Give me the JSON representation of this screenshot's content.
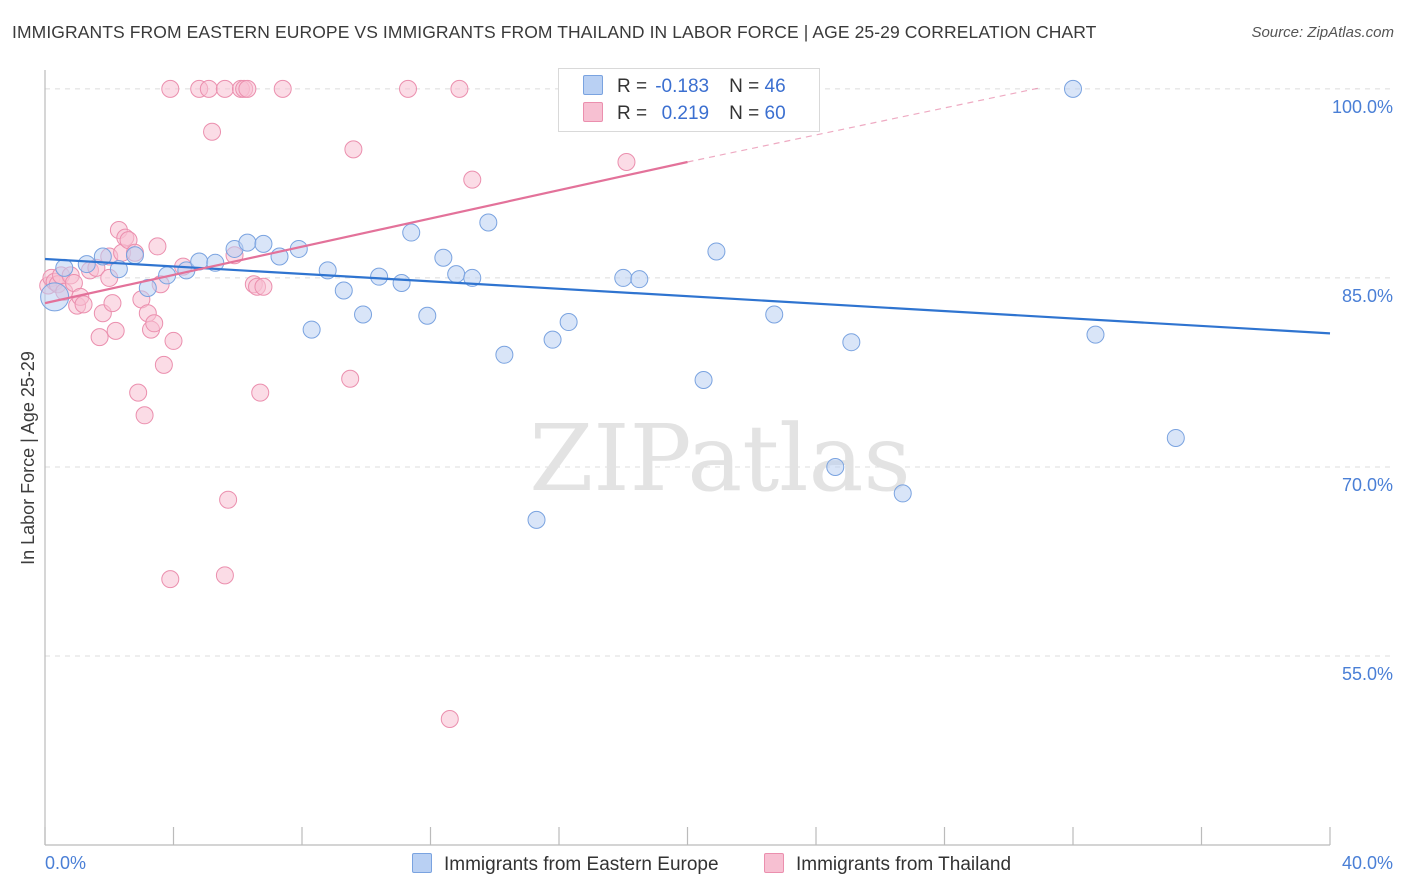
{
  "title": "IMMIGRANTS FROM EASTERN EUROPE VS IMMIGRANTS FROM THAILAND IN LABOR FORCE | AGE 25-29 CORRELATION CHART",
  "source": "Source: ZipAtlas.com",
  "watermark": "ZIPatlas",
  "colors": {
    "blue_fill": "#b9d0f3",
    "blue_stroke": "#7aa3e0",
    "blue_line": "#2f74d0",
    "pink_fill": "#f7c0d2",
    "pink_stroke": "#eb8fae",
    "pink_line": "#e3729a",
    "grid": "#dcdcdc",
    "tick_text": "#4a7fd6"
  },
  "legend_top": [
    {
      "r_label": "R =",
      "r_value": "-0.183",
      "n_label": "N =",
      "n_value": "46"
    },
    {
      "r_label": "R =",
      "r_value": "0.219",
      "n_label": "N =",
      "n_value": "60"
    }
  ],
  "chart_data": {
    "type": "scatter",
    "ylabel": "In Labor Force | Age 25-29",
    "xlim": [
      0,
      40
    ],
    "ylim": [
      40,
      101.5
    ],
    "x_tick_labels": [
      "0.0%",
      "40.0%"
    ],
    "y_ticks": [
      100,
      85,
      70,
      55
    ],
    "y_tick_labels": [
      "100.0%",
      "85.0%",
      "70.0%",
      "55.0%"
    ],
    "grid": "horizontal dashed",
    "legend_position": "bottom",
    "series": [
      {
        "name": "Immigrants from Eastern Europe",
        "color": "#b9d0f3",
        "trend": {
          "x": [
            0,
            40
          ],
          "y": [
            86.5,
            80.6
          ]
        },
        "points": [
          [
            0.3,
            83.5
          ],
          [
            0.6,
            85.8
          ],
          [
            1.3,
            86.1
          ],
          [
            1.8,
            86.7
          ],
          [
            2.3,
            85.7
          ],
          [
            2.8,
            86.8
          ],
          [
            3.2,
            84.2
          ],
          [
            3.8,
            85.2
          ],
          [
            4.4,
            85.6
          ],
          [
            4.8,
            86.3
          ],
          [
            5.3,
            86.2
          ],
          [
            5.9,
            87.3
          ],
          [
            6.3,
            87.8
          ],
          [
            6.8,
            87.7
          ],
          [
            7.3,
            86.7
          ],
          [
            7.9,
            87.3
          ],
          [
            8.3,
            80.9
          ],
          [
            8.8,
            85.6
          ],
          [
            9.3,
            84.0
          ],
          [
            9.9,
            82.1
          ],
          [
            10.4,
            85.1
          ],
          [
            11.1,
            84.6
          ],
          [
            11.4,
            88.6
          ],
          [
            11.9,
            82.0
          ],
          [
            12.4,
            86.6
          ],
          [
            12.8,
            85.3
          ],
          [
            13.3,
            85.0
          ],
          [
            13.8,
            89.4
          ],
          [
            14.3,
            78.9
          ],
          [
            15.3,
            65.8
          ],
          [
            15.8,
            80.1
          ],
          [
            16.3,
            81.5
          ],
          [
            18.0,
            85.0
          ],
          [
            18.5,
            84.9
          ],
          [
            19.3,
            100.0
          ],
          [
            20.3,
            100.0
          ],
          [
            20.5,
            76.9
          ],
          [
            20.9,
            87.1
          ],
          [
            21.9,
            100.0
          ],
          [
            22.7,
            82.1
          ],
          [
            24.6,
            70.0
          ],
          [
            25.1,
            79.9
          ],
          [
            26.7,
            67.9
          ],
          [
            32.0,
            100.0
          ],
          [
            32.7,
            80.5
          ],
          [
            35.2,
            72.3
          ]
        ]
      },
      {
        "name": "Immigrants from Thailand",
        "color": "#f7c0d2",
        "trend": {
          "x": [
            0,
            20
          ],
          "y": [
            83.0,
            94.2
          ]
        },
        "trend_dashed": {
          "x": [
            20,
            31
          ],
          "y": [
            94.2,
            100.1
          ]
        },
        "points": [
          [
            0.1,
            84.4
          ],
          [
            0.2,
            85.0
          ],
          [
            0.3,
            84.7
          ],
          [
            0.4,
            84.5
          ],
          [
            0.5,
            85.2
          ],
          [
            0.6,
            83.9
          ],
          [
            0.8,
            85.2
          ],
          [
            0.9,
            84.6
          ],
          [
            1.0,
            82.8
          ],
          [
            1.1,
            83.5
          ],
          [
            1.2,
            82.9
          ],
          [
            1.4,
            85.6
          ],
          [
            1.6,
            85.8
          ],
          [
            1.7,
            80.3
          ],
          [
            1.8,
            82.2
          ],
          [
            2.0,
            86.7
          ],
          [
            2.0,
            85.0
          ],
          [
            2.1,
            83.0
          ],
          [
            2.2,
            80.8
          ],
          [
            2.3,
            88.8
          ],
          [
            2.4,
            87.0
          ],
          [
            2.5,
            88.2
          ],
          [
            2.6,
            88.0
          ],
          [
            2.8,
            87.0
          ],
          [
            2.9,
            75.9
          ],
          [
            3.0,
            83.3
          ],
          [
            3.1,
            74.1
          ],
          [
            3.2,
            82.2
          ],
          [
            3.3,
            80.9
          ],
          [
            3.4,
            81.4
          ],
          [
            3.5,
            87.5
          ],
          [
            3.6,
            84.5
          ],
          [
            3.7,
            78.1
          ],
          [
            3.9,
            61.1
          ],
          [
            3.9,
            100.0
          ],
          [
            4.0,
            80.0
          ],
          [
            4.3,
            85.9
          ],
          [
            4.8,
            100.0
          ],
          [
            5.1,
            100.0
          ],
          [
            5.2,
            96.6
          ],
          [
            5.6,
            100.0
          ],
          [
            5.7,
            67.4
          ],
          [
            5.6,
            61.4
          ],
          [
            5.9,
            86.8
          ],
          [
            6.1,
            100.0
          ],
          [
            6.2,
            100.0
          ],
          [
            6.3,
            100.0
          ],
          [
            6.5,
            84.5
          ],
          [
            6.6,
            84.3
          ],
          [
            6.7,
            75.9
          ],
          [
            7.4,
            100.0
          ],
          [
            9.5,
            77.0
          ],
          [
            9.6,
            95.2
          ],
          [
            11.3,
            100.0
          ],
          [
            12.6,
            50.0
          ],
          [
            12.9,
            100.0
          ],
          [
            13.3,
            92.8
          ],
          [
            18.1,
            94.2
          ],
          [
            18.9,
            100.0
          ],
          [
            6.8,
            84.3
          ]
        ]
      }
    ]
  }
}
